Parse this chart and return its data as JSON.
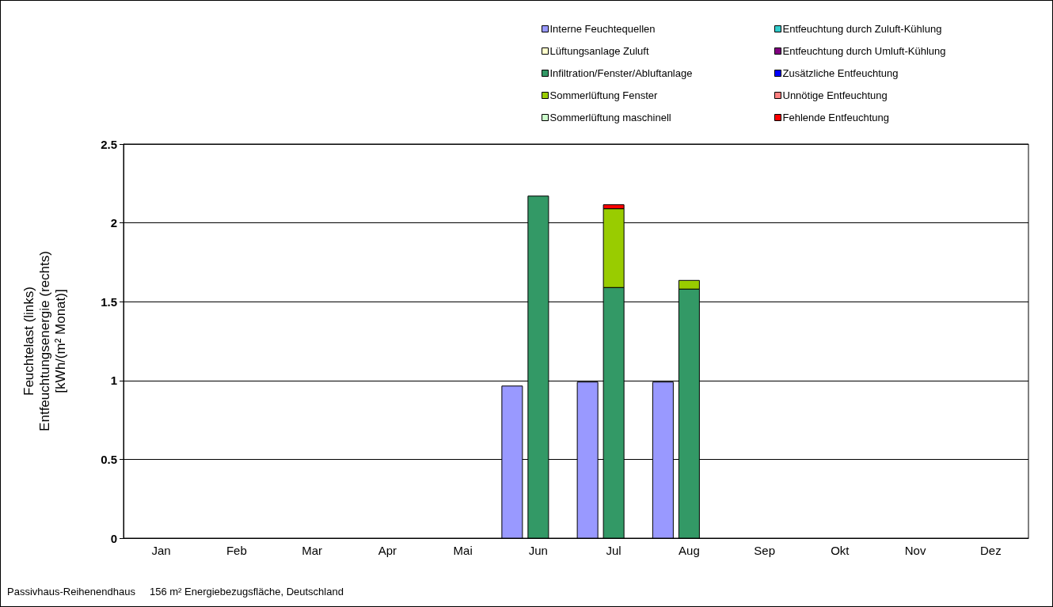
{
  "chart_data": {
    "type": "bar",
    "ylabel": "Feuchtelast (links)\nEntfeuchtungsenergie (rechts)\n[kWh/(m² Monat)]",
    "categories": [
      "Jan",
      "Feb",
      "Mar",
      "Apr",
      "Mai",
      "Jun",
      "Jul",
      "Aug",
      "Sep",
      "Okt",
      "Nov",
      "Dez"
    ],
    "series": [
      {
        "name": "Interne Feuchtequellen",
        "color": "#9999ff",
        "values": [
          null,
          null,
          null,
          null,
          null,
          0.965,
          0.99,
          0.99,
          null,
          null,
          null,
          null
        ]
      },
      {
        "name": "Lüftungsanlage Zuluft",
        "color": "#ffffcc",
        "values": [
          null,
          null,
          null,
          null,
          null,
          null,
          null,
          null,
          null,
          null,
          null,
          null
        ]
      },
      {
        "name": "Infiltration/Fenster/Abluftanlage",
        "color": "#339966",
        "values": [
          null,
          null,
          null,
          null,
          null,
          2.17,
          1.59,
          1.58,
          null,
          null,
          null,
          null
        ]
      },
      {
        "name": "Sommerlüftung Fenster",
        "color": "#99cc00",
        "base": [
          null,
          null,
          null,
          null,
          null,
          null,
          1.59,
          1.58,
          null,
          null,
          null,
          null
        ],
        "values": [
          null,
          null,
          null,
          null,
          null,
          null,
          0.5,
          0.055,
          null,
          null,
          null,
          null
        ]
      },
      {
        "name": "Sommerlüftung maschinell",
        "color": "#ccffcc",
        "values": [
          null,
          null,
          null,
          null,
          null,
          null,
          null,
          null,
          null,
          null,
          null,
          null
        ]
      },
      {
        "name": "Entfeuchtung durch Zuluft-Kühlung",
        "color": "#33cccc",
        "values": [
          null,
          null,
          null,
          null,
          null,
          null,
          null,
          null,
          null,
          null,
          null,
          null
        ]
      },
      {
        "name": "Entfeuchtung durch Umluft-Kühlung",
        "color": "#800080",
        "values": [
          null,
          null,
          null,
          null,
          null,
          null,
          null,
          null,
          null,
          null,
          null,
          null
        ]
      },
      {
        "name": "Zusätzliche Entfeuchtung",
        "color": "#0000ff",
        "values": [
          null,
          null,
          null,
          null,
          null,
          null,
          null,
          null,
          null,
          null,
          null,
          null
        ]
      },
      {
        "name": "Unnötige Entfeuchtung",
        "color": "#ff8080",
        "values": [
          null,
          null,
          null,
          null,
          null,
          null,
          null,
          null,
          null,
          null,
          null,
          null
        ]
      },
      {
        "name": "Fehlende Entfeuchtung",
        "color": "#ff0000",
        "base": [
          null,
          null,
          null,
          null,
          null,
          null,
          2.09,
          null,
          null,
          null,
          null,
          null
        ],
        "values": [
          null,
          null,
          null,
          null,
          null,
          null,
          0.025,
          null,
          null,
          null,
          null,
          null
        ]
      }
    ],
    "ylim": [
      0,
      2.5
    ],
    "yticks": [
      0,
      0.5,
      1,
      1.5,
      2,
      2.5
    ],
    "grid": "y",
    "legend": "top right",
    "annotations": [
      "Passivhaus-Reihenendhaus     156 m² Energiebezugsfläche, Deutschland"
    ]
  }
}
